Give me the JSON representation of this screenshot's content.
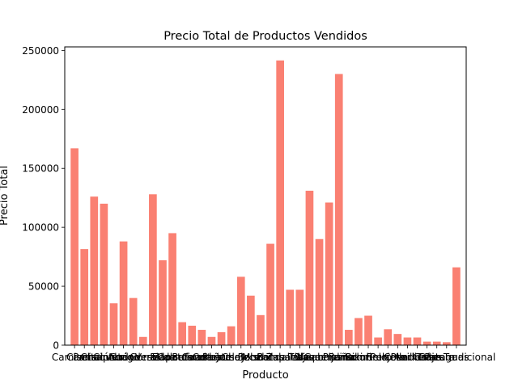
{
  "chart_data": {
    "type": "bar",
    "title": "Precio Total de Productos Vendidos",
    "xlabel": "Producto",
    "ylabel": "Precio Total",
    "ylim": [
      0,
      253000
    ],
    "yticks": [
      0,
      50000,
      100000,
      150000,
      200000,
      250000
    ],
    "ytick_labels": [
      "0",
      "50000",
      "100000",
      "150000",
      "200000",
      "250000"
    ],
    "bar_color": "#fa8072",
    "grid": false,
    "legend": "none",
    "categories": [
      "Camiseta",
      "Camisa",
      "Pantalón",
      "Chaqueta",
      "Cinturón",
      "Abrigo",
      "Sudadera",
      "Gorra",
      "Vestido",
      "Falda",
      "Zapatos",
      "Calcetines",
      "Bufanda",
      "Guantes",
      "Corbata",
      "Pañuelo",
      "Jersey",
      "Chaleco",
      "Bolso",
      "Mochila",
      "Botas",
      "Sandalias",
      "Zapatillas",
      "Traje",
      "Blazer",
      "Vaqueros",
      "Gabardina",
      "Pijama",
      "Bañador",
      "Bikini",
      "Sombrero",
      "Reloj",
      "Pulsera",
      "Collar",
      "Anillo",
      "Pendientes",
      "Gafas",
      "Cartera",
      "Paraguas",
      "Traje Tradicional"
    ],
    "values": [
      167000,
      81500,
      126000,
      120000,
      35500,
      88000,
      40000,
      7000,
      128000,
      72000,
      95000,
      19500,
      16500,
      13000,
      7000,
      11000,
      16000,
      58000,
      42000,
      25500,
      86000,
      241500,
      47000,
      47000,
      131000,
      90000,
      121000,
      230000,
      13000,
      23000,
      25000,
      6500,
      13500,
      9500,
      6500,
      6500,
      3000,
      3000,
      2500,
      66000
    ],
    "xtick_text_visible": "overlapping labels; the readable ones at the ends are \"Camiseta\" and \"Traje Tradicional\""
  }
}
